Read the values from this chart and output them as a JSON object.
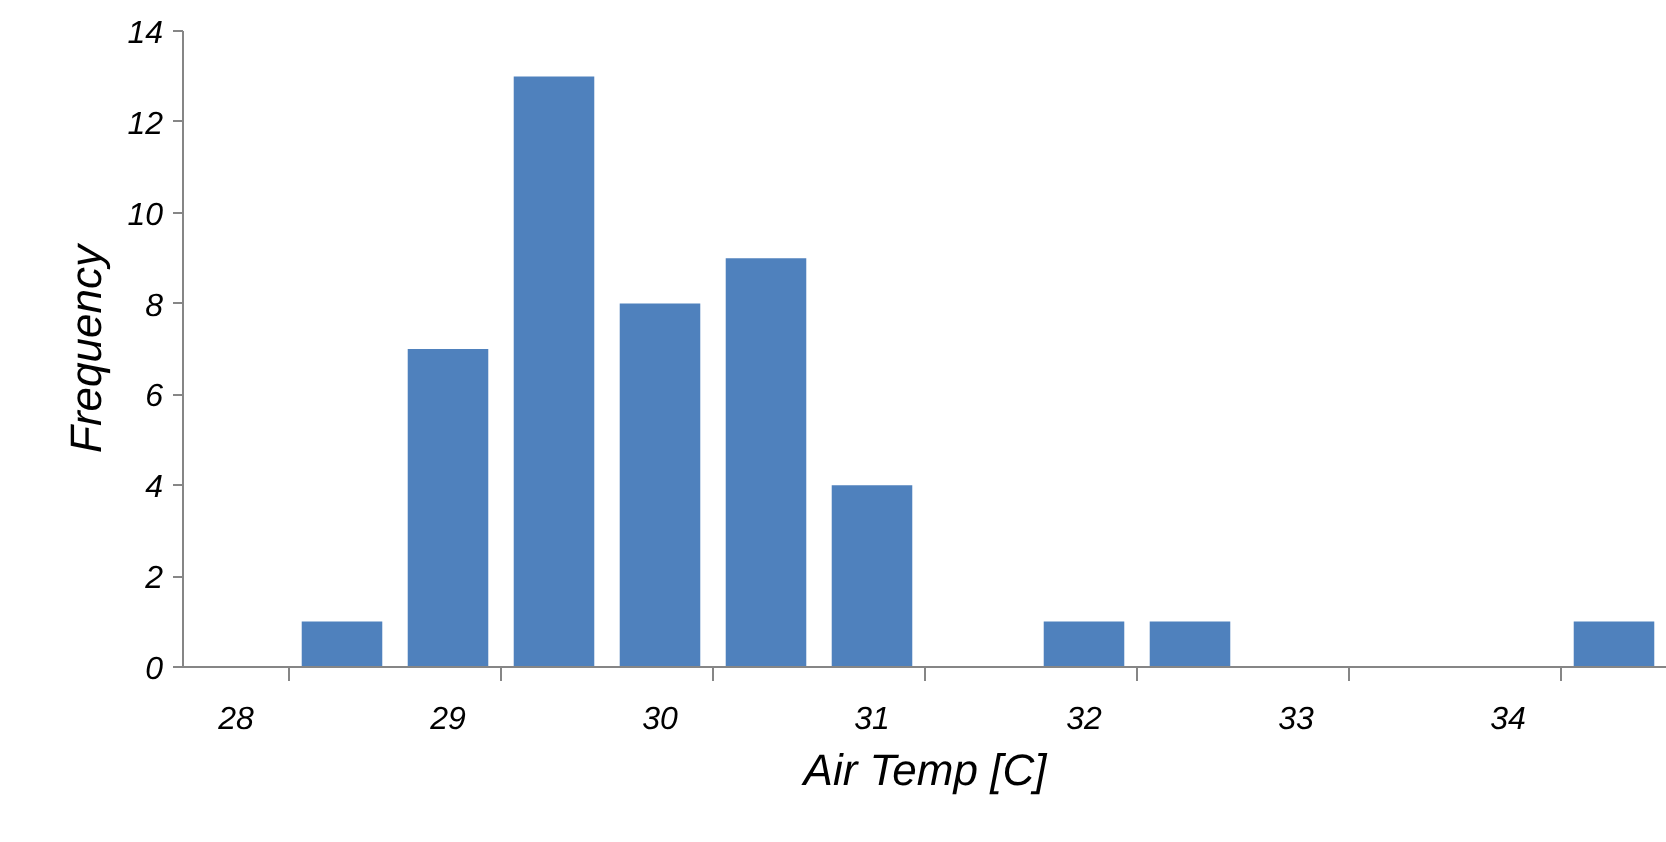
{
  "chart_data": {
    "type": "bar",
    "xlabel": "Air Temp [C]",
    "ylabel": "Frequency",
    "categories": [
      "28",
      null,
      "29",
      null,
      "30",
      null,
      "31",
      null,
      "32",
      null,
      "33",
      null,
      "34",
      null
    ],
    "values": [
      0,
      1,
      7,
      13,
      8,
      9,
      4,
      0,
      1,
      1,
      0,
      0,
      0,
      1
    ],
    "color": "#4f81bd",
    "ylim": [
      0,
      14
    ],
    "yticks": [
      0,
      2,
      4,
      6,
      8,
      10,
      12,
      14
    ],
    "grid": false
  }
}
